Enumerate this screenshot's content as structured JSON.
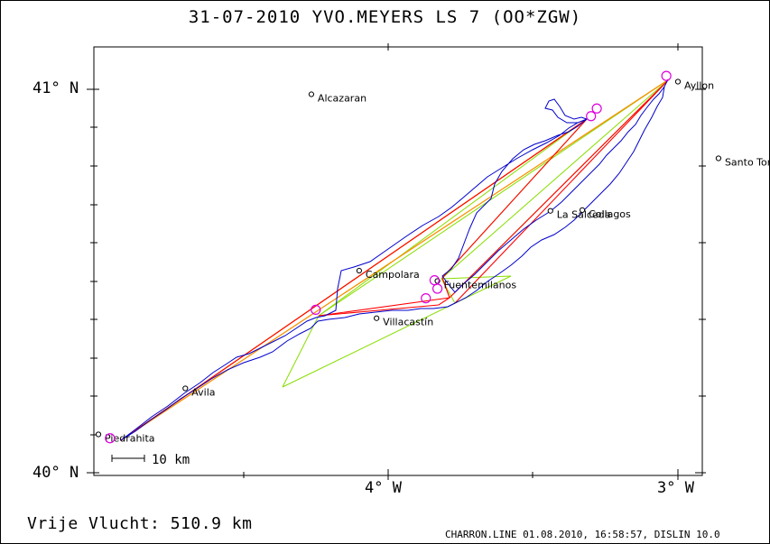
{
  "title": "31-07-2010    YVO.MEYERS    LS 7 (OO*ZGW)",
  "summary": "Vrije Vlucht:  510.9 km",
  "footer": "CHARRON.LINE 01.08.2010, 16:58:57, DISLIN 10.0",
  "scale_bar_label": "10 km",
  "axes": {
    "y_labels": [
      "41° N",
      "40° N"
    ],
    "x_labels": [
      "4° W",
      "3° W"
    ]
  },
  "places": [
    {
      "name": "Alcazaran",
      "lon": -4.265,
      "lat": 40.987
    },
    {
      "name": "Ayllon",
      "lon": -3.0,
      "lat": 41.02
    },
    {
      "name": "Santo Tome",
      "lon": -2.86,
      "lat": 40.82
    },
    {
      "name": "Collagos",
      "lon": -3.33,
      "lat": 40.685
    },
    {
      "name": "La Salceda",
      "lon": -3.44,
      "lat": 40.683
    },
    {
      "name": "Campolara",
      "lon": -4.1,
      "lat": 40.527
    },
    {
      "name": "Fuentemilanos",
      "lon": -3.83,
      "lat": 40.5
    },
    {
      "name": "Villacastin",
      "display": "Villacastín",
      "lon": -4.04,
      "lat": 40.403
    },
    {
      "name": "Avila",
      "display": "Avila",
      "lon": -4.7,
      "lat": 40.22
    },
    {
      "name": "Piedrahita",
      "display": "Piedrahita",
      "lon": -5.0,
      "lat": 40.1
    }
  ],
  "turnpoints": [
    {
      "lon": -4.96,
      "lat": 40.09
    },
    {
      "lon": -3.3,
      "lat": 40.93
    },
    {
      "lon": -3.28,
      "lat": 40.95
    },
    {
      "lon": -3.87,
      "lat": 40.455
    },
    {
      "lon": -3.83,
      "lat": 40.48
    },
    {
      "lon": -4.25,
      "lat": 40.425
    },
    {
      "lon": -3.04,
      "lat": 41.035
    },
    {
      "lon": -3.84,
      "lat": 40.502
    }
  ],
  "colors": {
    "track": "#0000cc",
    "optimized_route": "#ff0000",
    "route_orange": "#ff8c00",
    "sector_lines": "#88dd00",
    "turnpoint_marker": "#dd00dd",
    "frame": "#000000"
  }
}
